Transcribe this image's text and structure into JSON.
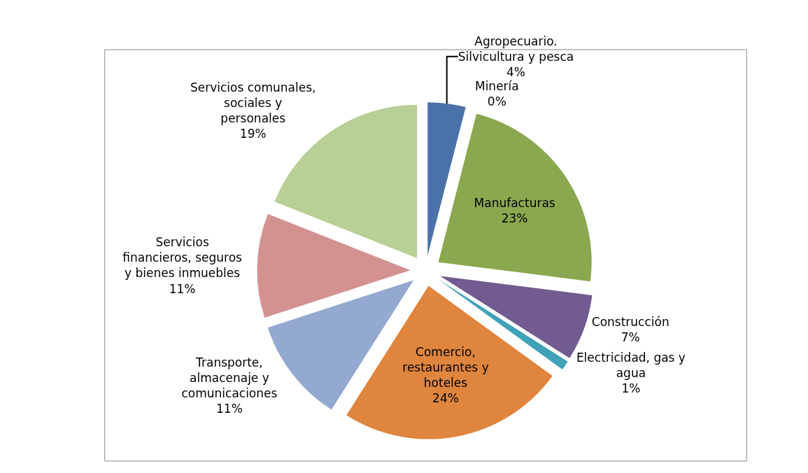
{
  "chart_data": {
    "type": "pie",
    "categories": [
      "Agropecuario. Silvicultura y pesca",
      "Minería",
      "Manufacturas",
      "Construcción",
      "Electricidad, gas y agua",
      "Comercio, restaurantes y hoteles",
      "Transporte, almacenaje y comunicaciones",
      "Servicios financieros, seguros y bienes inmuebles",
      "Servicios comunales, sociales y personales"
    ],
    "values": [
      4,
      0,
      23,
      7,
      1,
      24,
      11,
      11,
      19
    ],
    "value_labels": [
      "4%",
      "0%",
      "23%",
      "7%",
      "1%",
      "24%",
      "11%",
      "11%",
      "19%"
    ],
    "colors": [
      "#4a72a8",
      "#c0504d",
      "#8aa84f",
      "#715b90",
      "#3fa2b8",
      "#e0853e",
      "#93a9d0",
      "#d39290",
      "#b8cf95"
    ],
    "legend": false
  }
}
